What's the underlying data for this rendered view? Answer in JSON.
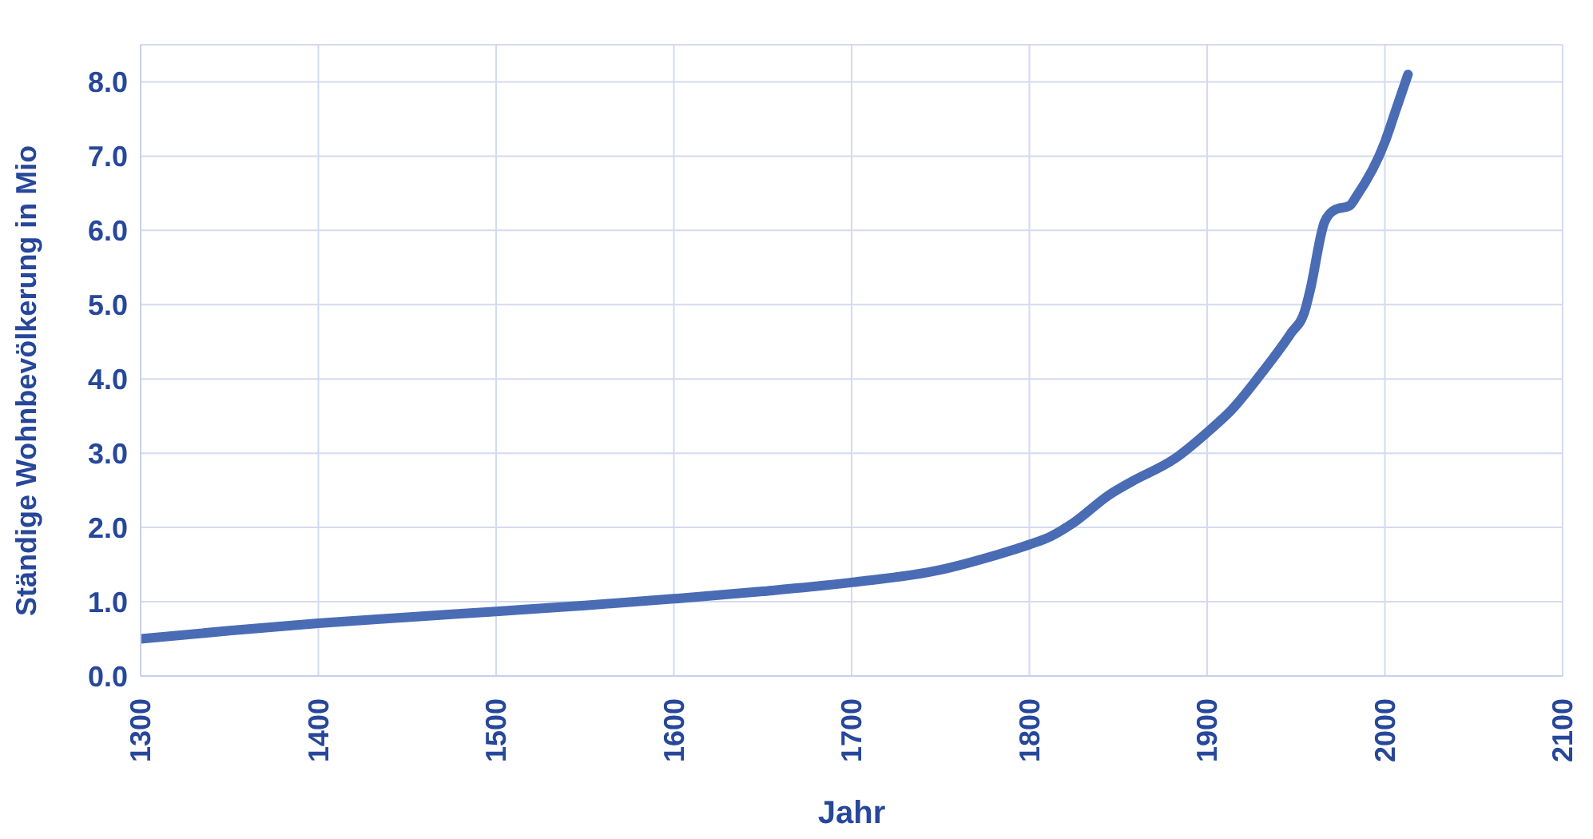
{
  "chart_data": {
    "type": "line",
    "xlabel": "Jahr",
    "ylabel": "Ständige Wohnbevölkerung in Mio",
    "x": [
      1300,
      1350,
      1400,
      1450,
      1500,
      1550,
      1600,
      1650,
      1700,
      1750,
      1780,
      1800,
      1812,
      1824,
      1845,
      1857,
      1882,
      1900,
      1914,
      1932,
      1947,
      1955,
      1958,
      1966,
      1972,
      1980,
      1984,
      2000,
      2006,
      2013
    ],
    "series": [
      {
        "color": "#4a6cb4",
        "values": [
          0.5,
          0.61,
          0.71,
          0.79,
          0.87,
          0.95,
          1.04,
          1.14,
          1.26,
          1.43,
          1.62,
          1.77,
          1.88,
          2.05,
          2.44,
          2.61,
          2.93,
          3.28,
          3.59,
          4.12,
          4.61,
          4.92,
          5.2,
          6.11,
          6.28,
          6.33,
          6.46,
          7.19,
          7.61,
          8.1
        ]
      }
    ],
    "xlim": [
      1300,
      2100
    ],
    "xticks": [
      1300,
      1400,
      1500,
      1600,
      1700,
      1800,
      1900,
      2000,
      2100
    ],
    "ylim": [
      0,
      8.5
    ],
    "yticks": [
      {
        "value": 0,
        "label": "0.0"
      },
      {
        "value": 1,
        "label": "1.0"
      },
      {
        "value": 2,
        "label": "2.0"
      },
      {
        "value": 3,
        "label": "3.0"
      },
      {
        "value": 4,
        "label": "4.0"
      },
      {
        "value": 5,
        "label": "5.0"
      },
      {
        "value": 6,
        "label": "6.0"
      },
      {
        "value": 7,
        "label": "7.0"
      },
      {
        "value": 8,
        "label": "8.0"
      }
    ],
    "grid": true,
    "legend": false,
    "marker": "none",
    "line_style": "solid"
  }
}
